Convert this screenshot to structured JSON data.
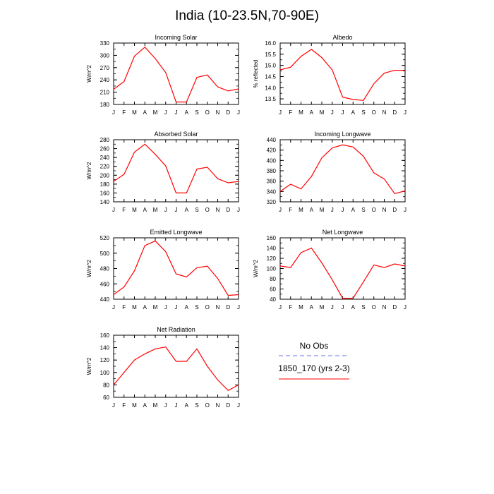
{
  "figure": {
    "title": "India (10-23.5N,70-90E)"
  },
  "legend": {
    "entries": [
      {
        "label": "No Obs",
        "color": "#6e6ef0",
        "style": "dashed"
      },
      {
        "label": "1850_170 (yrs 2-3)",
        "color": "#ff0000",
        "style": "solid"
      }
    ]
  },
  "chart_data": [
    {
      "type": "line",
      "title": "Incoming Solar",
      "ylabel": "W/m^2",
      "categories": [
        "J",
        "F",
        "M",
        "A",
        "M",
        "J",
        "J",
        "A",
        "S",
        "O",
        "N",
        "D",
        "J"
      ],
      "ylim": [
        180,
        330
      ],
      "yticks": [
        180,
        210,
        240,
        270,
        300,
        330
      ],
      "series": [
        {
          "color": "#ff0000",
          "values": [
            217,
            236,
            298,
            320,
            292,
            258,
            186,
            186,
            246,
            252,
            223,
            213,
            218
          ]
        }
      ]
    },
    {
      "type": "line",
      "title": "Albedo",
      "ylabel": "% reflected",
      "categories": [
        "J",
        "F",
        "M",
        "A",
        "M",
        "J",
        "J",
        "A",
        "S",
        "O",
        "N",
        "D",
        "J"
      ],
      "ylim": [
        13.25,
        16.0
      ],
      "yticks": [
        13.5,
        14.0,
        14.5,
        15.0,
        15.5,
        16.0
      ],
      "series": [
        {
          "color": "#ff0000",
          "values": [
            14.8,
            14.92,
            15.4,
            15.72,
            15.35,
            14.8,
            13.58,
            13.47,
            13.43,
            14.18,
            14.65,
            14.78,
            14.78
          ]
        }
      ]
    },
    {
      "type": "line",
      "title": "Absorbed Solar",
      "ylabel": "W/m^2",
      "categories": [
        "J",
        "F",
        "M",
        "A",
        "M",
        "J",
        "J",
        "A",
        "S",
        "O",
        "N",
        "D",
        "J"
      ],
      "ylim": [
        140,
        280
      ],
      "yticks": [
        140,
        160,
        180,
        200,
        220,
        240,
        260,
        280
      ],
      "series": [
        {
          "color": "#ff0000",
          "values": [
            186,
            202,
            252,
            270,
            247,
            221,
            160,
            160,
            214,
            218,
            192,
            183,
            186
          ]
        }
      ]
    },
    {
      "type": "line",
      "title": "Incoming Longwave",
      "ylabel": "",
      "categories": [
        "J",
        "F",
        "M",
        "A",
        "M",
        "J",
        "J",
        "A",
        "S",
        "O",
        "N",
        "D",
        "J"
      ],
      "ylim": [
        320,
        440
      ],
      "yticks": [
        320,
        340,
        360,
        380,
        400,
        420,
        440
      ],
      "series": [
        {
          "color": "#ff0000",
          "values": [
            340,
            354,
            345,
            369,
            405,
            424,
            430,
            426,
            408,
            376,
            364,
            336,
            341
          ]
        }
      ]
    },
    {
      "type": "line",
      "title": "Emitted Longwave",
      "ylabel": "W/m^2",
      "categories": [
        "J",
        "F",
        "M",
        "A",
        "M",
        "J",
        "J",
        "A",
        "S",
        "O",
        "N",
        "D",
        "J"
      ],
      "ylim": [
        440,
        520
      ],
      "yticks": [
        440,
        460,
        480,
        500,
        520
      ],
      "series": [
        {
          "color": "#ff0000",
          "values": [
            446,
            456,
            477,
            510,
            516,
            502,
            473,
            469,
            481,
            483,
            467,
            445,
            446
          ]
        }
      ]
    },
    {
      "type": "line",
      "title": "Net Longwave",
      "ylabel": "W/m^2",
      "categories": [
        "J",
        "F",
        "M",
        "A",
        "M",
        "J",
        "J",
        "A",
        "S",
        "O",
        "N",
        "D",
        "J"
      ],
      "ylim": [
        40,
        160
      ],
      "yticks": [
        40,
        60,
        80,
        100,
        120,
        140,
        160
      ],
      "series": [
        {
          "color": "#ff0000",
          "values": [
            105,
            102,
            131,
            140,
            111,
            78,
            42,
            42,
            74,
            107,
            102,
            109,
            105
          ]
        }
      ]
    },
    {
      "type": "line",
      "title": "Net Radiation",
      "ylabel": "W/m^2",
      "categories": [
        "J",
        "F",
        "M",
        "A",
        "M",
        "J",
        "J",
        "A",
        "S",
        "O",
        "N",
        "D",
        "J"
      ],
      "ylim": [
        60,
        160
      ],
      "yticks": [
        60,
        80,
        100,
        120,
        140,
        160
      ],
      "series": [
        {
          "color": "#ff0000",
          "values": [
            80,
            100,
            120,
            130,
            138,
            141,
            118,
            118,
            138,
            110,
            88,
            71,
            80
          ]
        }
      ]
    }
  ]
}
